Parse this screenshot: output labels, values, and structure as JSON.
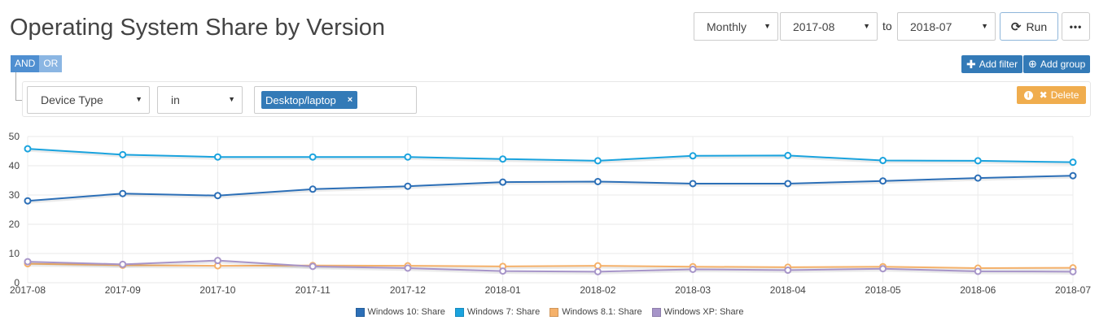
{
  "page": {
    "title": "Operating System Share by Version"
  },
  "controls": {
    "interval": "Monthly",
    "start": "2017-08",
    "to_label": "to",
    "end": "2018-07",
    "run_label": "Run",
    "more_label": "•••"
  },
  "logic": {
    "and_label": "AND",
    "or_label": "OR"
  },
  "actions": {
    "add_filter_label": "Add filter",
    "add_group_label": "Add group"
  },
  "filter": {
    "field": "Device Type",
    "operator": "in",
    "value_tag": "Desktop/laptop",
    "remove_tag_glyph": "×",
    "delete_label": "Delete"
  },
  "icons": {
    "refresh": "refresh-icon",
    "plus": "plus-icon",
    "plus_circle": "plus-circle-icon",
    "info": "info-icon",
    "times": "times-icon"
  },
  "colors": {
    "accent": "#337ab7",
    "warning": "#f0ad4e"
  },
  "chart_data": {
    "type": "line",
    "x": [
      "2017-08",
      "2017-09",
      "2017-10",
      "2017-11",
      "2017-12",
      "2018-01",
      "2018-02",
      "2018-03",
      "2018-04",
      "2018-05",
      "2018-06",
      "2018-07"
    ],
    "ylim": [
      0,
      50
    ],
    "yticks": [
      0,
      10,
      20,
      30,
      40,
      50
    ],
    "grid": true,
    "legend_position": "bottom",
    "series": [
      {
        "name": "Windows 10: Share",
        "color": "#2c6fb7",
        "values": [
          28.0,
          30.5,
          29.8,
          32.0,
          33.0,
          34.4,
          34.6,
          33.9,
          33.9,
          34.8,
          35.8,
          36.6
        ]
      },
      {
        "name": "Windows 7: Share",
        "color": "#1aa3de",
        "values": [
          45.8,
          43.8,
          43.0,
          43.0,
          43.0,
          42.3,
          41.7,
          43.4,
          43.5,
          41.8,
          41.7,
          41.2
        ]
      },
      {
        "name": "Windows 8.1: Share",
        "color": "#f5b16a",
        "values": [
          6.5,
          6.0,
          5.8,
          5.9,
          5.8,
          5.6,
          5.8,
          5.5,
          5.3,
          5.5,
          5.0,
          5.1
        ]
      },
      {
        "name": "Windows XP: Share",
        "color": "#a795c9",
        "values": [
          7.2,
          6.3,
          7.6,
          5.6,
          5.0,
          4.0,
          3.8,
          4.6,
          4.3,
          4.8,
          3.9,
          3.8
        ]
      }
    ]
  }
}
